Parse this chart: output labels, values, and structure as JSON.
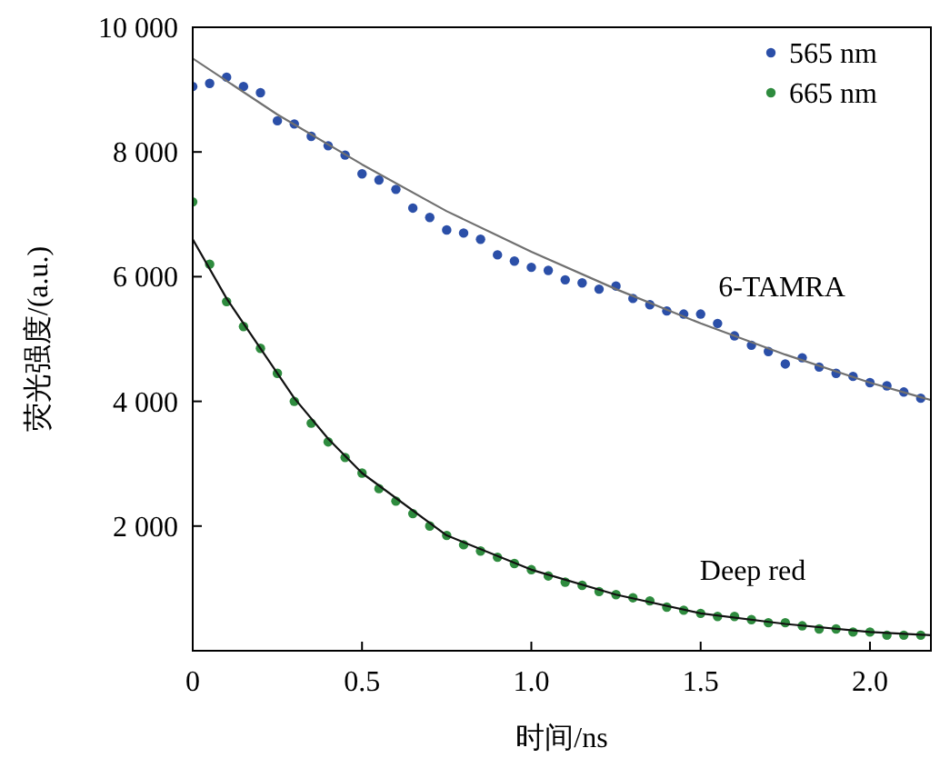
{
  "chart_data": {
    "type": "scatter",
    "xlabel": "时间/ns",
    "ylabel": "荧光强度/(a.u.)",
    "xlim": [
      0,
      2.18
    ],
    "ylim": [
      0,
      10000
    ],
    "xticks": [
      0,
      0.5,
      {
        "value": 1,
        "label": "1.0"
      },
      1.5,
      {
        "value": 2,
        "label": "2.0"
      }
    ],
    "yticks": [
      {
        "value": 2000,
        "label": "2 000"
      },
      {
        "value": 4000,
        "label": "4 000"
      },
      {
        "value": 6000,
        "label": "6 000"
      },
      {
        "value": 8000,
        "label": "8 000"
      },
      {
        "value": 10000,
        "label": "10 000"
      }
    ],
    "legend": "top right",
    "series": [
      {
        "name": "565 nm",
        "marker": "circle",
        "color": "#2b4fa8",
        "x": [
          0,
          0.05,
          0.1,
          0.15,
          0.2,
          0.25,
          0.3,
          0.35,
          0.4,
          0.45,
          0.5,
          0.55,
          0.6,
          0.65,
          0.7,
          0.75,
          0.8,
          0.85,
          0.9,
          0.95,
          1.0,
          1.05,
          1.1,
          1.15,
          1.2,
          1.25,
          1.3,
          1.35,
          1.4,
          1.45,
          1.5,
          1.55,
          1.6,
          1.65,
          1.7,
          1.75,
          1.8,
          1.85,
          1.9,
          1.95,
          2.0,
          2.05,
          2.1,
          2.15
        ],
        "values": [
          9050,
          9100,
          9200,
          9050,
          8950,
          8500,
          8450,
          8250,
          8100,
          7950,
          7650,
          7550,
          7400,
          7100,
          6950,
          6750,
          6700,
          6600,
          6350,
          6250,
          6150,
          6100,
          5950,
          5900,
          5800,
          5850,
          5650,
          5550,
          5450,
          5400,
          5400,
          5250,
          5050,
          4900,
          4800,
          4600,
          4700,
          4550,
          4450,
          4400,
          4300,
          4250,
          4150,
          4050
        ]
      },
      {
        "name": "665 nm",
        "marker": "circle",
        "color": "#2e8b3e",
        "x": [
          0,
          0.05,
          0.1,
          0.15,
          0.2,
          0.25,
          0.3,
          0.35,
          0.4,
          0.45,
          0.5,
          0.55,
          0.6,
          0.65,
          0.7,
          0.75,
          0.8,
          0.85,
          0.9,
          0.95,
          1.0,
          1.05,
          1.1,
          1.15,
          1.2,
          1.25,
          1.3,
          1.35,
          1.4,
          1.45,
          1.5,
          1.55,
          1.6,
          1.65,
          1.7,
          1.75,
          1.8,
          1.85,
          1.9,
          1.95,
          2.0,
          2.05,
          2.1,
          2.15
        ],
        "values": [
          7200,
          6200,
          5600,
          5200,
          4850,
          4450,
          4000,
          3650,
          3350,
          3100,
          2850,
          2600,
          2400,
          2200,
          2000,
          1850,
          1700,
          1600,
          1500,
          1400,
          1300,
          1200,
          1100,
          1050,
          950,
          900,
          850,
          800,
          700,
          650,
          600,
          550,
          550,
          500,
          450,
          450,
          400,
          350,
          350,
          300,
          300,
          250,
          250,
          250
        ]
      },
      {
        "type": "line",
        "color": "#707070",
        "line_style": "solid",
        "x": [
          0,
          0.25,
          0.5,
          0.75,
          1.0,
          1.25,
          1.5,
          1.75,
          2.0,
          2.18
        ],
        "values": [
          9500,
          8600,
          7800,
          7050,
          6400,
          5800,
          5250,
          4750,
          4300,
          4020
        ]
      },
      {
        "type": "line",
        "color": "#111111",
        "line_style": "solid",
        "x": [
          0,
          0.1,
          0.2,
          0.3,
          0.4,
          0.5,
          0.75,
          1.0,
          1.25,
          1.5,
          1.75,
          2.0,
          2.18
        ],
        "values": [
          6600,
          5650,
          4850,
          4050,
          3400,
          2850,
          1850,
          1300,
          900,
          600,
          430,
          300,
          250
        ]
      }
    ],
    "annotations": [
      "6-TAMRA",
      "Deep red"
    ]
  }
}
